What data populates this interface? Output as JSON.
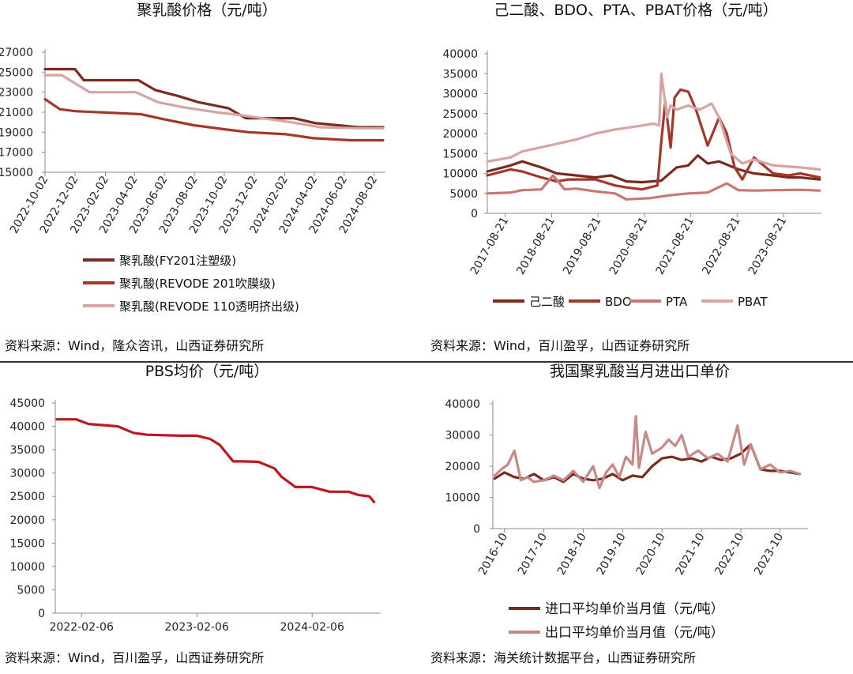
{
  "panels": [
    {
      "title": "聚乳酸价格（元/吨）",
      "source": "资料来源：Wind，隆众咨讯，山西证券研究所",
      "chart_data": {
        "type": "line",
        "title": "聚乳酸价格（元/吨）",
        "y_ticks": [
          "15000",
          "17000",
          "19000",
          "21000",
          "23000",
          "25000",
          "27000"
        ],
        "ylim": [
          15000,
          27000
        ],
        "x_ticks": [
          "2022-10-02",
          "2022-12-02",
          "2023-02-02",
          "2023-04-02",
          "2023-06-02",
          "2023-08-02",
          "2023-10-02",
          "2023-12-02",
          "2024-02-02",
          "2024-04-02",
          "2024-06-02",
          "2024-08-02"
        ],
        "legend": "bottom",
        "series": [
          {
            "name": "聚乳酸(FY201注塑级)",
            "color": "#7b2a20",
            "x": [
              "2022-10-02",
              "2022-12-02",
              "2022-12-20",
              "2023-04-10",
              "2023-05-15",
              "2023-07-01",
              "2023-08-10",
              "2023-10-10",
              "2023-11-15",
              "2024-02-20",
              "2024-04-05",
              "2024-07-01",
              "2024-08-20"
            ],
            "y": [
              25300,
              25300,
              24200,
              24200,
              23200,
              22600,
              22000,
              21400,
              20400,
              20400,
              19900,
              19500,
              19500
            ]
          },
          {
            "name": "聚乳酸(REVODE 201吹膜级)",
            "color": "#a3372a",
            "x": [
              "2022-10-02",
              "2022-11-01",
              "2022-12-02",
              "2023-04-15",
              "2023-06-01",
              "2023-08-01",
              "2023-10-01",
              "2023-11-20",
              "2024-02-05",
              "2024-04-01",
              "2024-06-15",
              "2024-08-20"
            ],
            "y": [
              22300,
              21300,
              21100,
              20800,
              20300,
              19700,
              19300,
              19000,
              18800,
              18400,
              18200,
              18200
            ]
          },
          {
            "name": "聚乳酸(REVODE 110透明挤出级)",
            "color": "#d6a4a2",
            "x": [
              "2022-10-02",
              "2022-11-05",
              "2023-01-01",
              "2023-04-05",
              "2023-05-20",
              "2023-07-10",
              "2023-09-15",
              "2023-11-05",
              "2024-02-15",
              "2024-04-15",
              "2024-07-01",
              "2024-08-20"
            ],
            "y": [
              24700,
              24700,
              23000,
              23000,
              22000,
              21500,
              21000,
              20700,
              20000,
              19500,
              19400,
              19400
            ]
          }
        ]
      }
    },
    {
      "title": "己二酸、BDO、PTA、PBAT价格（元/吨）",
      "source": "资料来源：Wind，百川盈孚，山西证券研究所",
      "chart_data": {
        "type": "line",
        "title": "己二酸、BDO、PTA、PBAT价格（元/吨）",
        "y_ticks": [
          "0",
          "5000",
          "10000",
          "15000",
          "20000",
          "25000",
          "30000",
          "35000",
          "40000"
        ],
        "ylim": [
          0,
          40000
        ],
        "x_ticks": [
          "2017-08-21",
          "2018-08-21",
          "2019-08-21",
          "2020-08-21",
          "2021-08-21",
          "2022-08-21",
          "2023-08-21"
        ],
        "legend": "bottom",
        "series": [
          {
            "name": "己二酸",
            "color": "#7b2a20",
            "x": [
              "2017-04-01",
              "2017-10-01",
              "2018-01-01",
              "2018-06-01",
              "2018-10-01",
              "2019-03-01",
              "2019-08-01",
              "2019-12-01",
              "2020-04-01",
              "2020-08-01",
              "2021-01-01",
              "2021-05-01",
              "2021-08-01",
              "2021-10-15",
              "2022-01-01",
              "2022-04-01",
              "2022-09-01",
              "2023-01-01",
              "2023-06-01",
              "2023-10-01",
              "2024-01-01",
              "2024-06-01"
            ],
            "y": [
              10500,
              12000,
              13000,
              11500,
              10000,
              9500,
              9000,
              9500,
              8000,
              7800,
              8200,
              11500,
              12000,
              14500,
              12500,
              13000,
              11000,
              10000,
              9500,
              9000,
              9000,
              8500
            ]
          },
          {
            "name": "BDO",
            "color": "#a3372a",
            "x": [
              "2017-04-01",
              "2017-10-01",
              "2018-01-01",
              "2018-06-01",
              "2018-10-01",
              "2019-01-01",
              "2019-08-01",
              "2020-01-01",
              "2020-04-01",
              "2020-08-01",
              "2020-12-01",
              "2021-01-01",
              "2021-02-01",
              "2021-03-15",
              "2021-04-15",
              "2021-06-01",
              "2021-08-01",
              "2021-10-01",
              "2022-01-01",
              "2022-04-01",
              "2022-06-01",
              "2022-08-01",
              "2022-10-01",
              "2023-01-01",
              "2023-06-01",
              "2023-10-01",
              "2024-01-01",
              "2024-06-01"
            ],
            "y": [
              9500,
              11000,
              10500,
              9000,
              8000,
              8500,
              8500,
              7000,
              6500,
              6000,
              7000,
              18000,
              28000,
              16500,
              29000,
              31000,
              30500,
              26000,
              17000,
              24000,
              20000,
              11500,
              8500,
              14000,
              10000,
              9500,
              10000,
              9000
            ]
          },
          {
            "name": "PTA",
            "color": "#c77872",
            "x": [
              "2017-04-01",
              "2017-10-01",
              "2018-01-01",
              "2018-06-01",
              "2018-09-01",
              "2018-12-01",
              "2019-03-01",
              "2019-08-01",
              "2020-01-01",
              "2020-04-01",
              "2020-10-01",
              "2021-03-01",
              "2021-08-01",
              "2022-01-01",
              "2022-06-01",
              "2022-09-01",
              "2023-01-01",
              "2023-06-01",
              "2024-01-01",
              "2024-06-01"
            ],
            "y": [
              5000,
              5200,
              5800,
              6000,
              9500,
              6000,
              6200,
              5500,
              5000,
              3500,
              3800,
              4500,
              5000,
              5200,
              7500,
              5800,
              5700,
              5800,
              5900,
              5700
            ]
          },
          {
            "name": "PBAT",
            "color": "#d6a4a2",
            "x": [
              "2017-04-01",
              "2017-10-01",
              "2018-01-01",
              "2018-08-01",
              "2019-03-01",
              "2019-08-01",
              "2020-01-01",
              "2020-08-01",
              "2020-11-01",
              "2020-12-15",
              "2021-01-01",
              "2021-02-15",
              "2021-03-15",
              "2021-05-01",
              "2021-08-01",
              "2021-11-01",
              "2022-02-01",
              "2022-04-01",
              "2022-07-01",
              "2022-10-01",
              "2023-01-01",
              "2023-06-01",
              "2024-01-01",
              "2024-06-01"
            ],
            "y": [
              13000,
              14000,
              15500,
              17000,
              18500,
              20000,
              21000,
              22000,
              22500,
              22000,
              35000,
              24000,
              27000,
              26000,
              27000,
              26000,
              27500,
              24000,
              15000,
              12500,
              13500,
              12000,
              11500,
              11000
            ]
          }
        ]
      }
    },
    {
      "title": "PBS均价（元/吨）",
      "source": "资料来源：Wind，百川盈孚，山西证券研究所",
      "chart_data": {
        "type": "line",
        "title": "PBS均价（元/吨）",
        "y_ticks": [
          "0",
          "5000",
          "10000",
          "15000",
          "20000",
          "25000",
          "30000",
          "35000",
          "40000",
          "45000"
        ],
        "ylim": [
          0,
          45000
        ],
        "x_ticks": [
          "2022-02-06",
          "2023-02-06",
          "2024-02-06"
        ],
        "series": [
          {
            "name": "PBS均价",
            "color": "#c0161f",
            "x": [
              "2021-11-20",
              "2022-01-20",
              "2022-03-01",
              "2022-06-01",
              "2022-07-20",
              "2022-09-01",
              "2022-12-15",
              "2023-02-06",
              "2023-03-20",
              "2023-04-20",
              "2023-06-01",
              "2023-07-01",
              "2023-08-20",
              "2023-10-10",
              "2023-11-01",
              "2023-12-15",
              "2024-02-06",
              "2024-04-01",
              "2024-06-01",
              "2024-07-01",
              "2024-08-05",
              "2024-08-20"
            ],
            "y": [
              41500,
              41500,
              40500,
              40000,
              38600,
              38200,
              38000,
              38000,
              37300,
              36000,
              32500,
              32500,
              32400,
              31000,
              29200,
              27000,
              27000,
              26000,
              26000,
              25300,
              25000,
              23800
            ]
          }
        ]
      }
    },
    {
      "title": "我国聚乳酸当月进出口单价",
      "source": "资料来源：海关统计数据平台，山西证券研究所",
      "chart_data": {
        "type": "line",
        "title": "我国聚乳酸当月进出口单价",
        "y_ticks": [
          "0",
          "10000",
          "20000",
          "30000",
          "40000"
        ],
        "ylim": [
          0,
          40000
        ],
        "x_ticks": [
          "2016-10",
          "2017-10",
          "2018-10",
          "2019-10",
          "2020-10",
          "2021-10",
          "2022-10",
          "2023-10"
        ],
        "legend": "bottom",
        "series": [
          {
            "name": "进口平均单价当月值（元/吨）",
            "color": "#7b2a20",
            "x": [
              "2016-07",
              "2016-10",
              "2017-01",
              "2017-04",
              "2017-07",
              "2017-10",
              "2018-01",
              "2018-04",
              "2018-07",
              "2018-10",
              "2019-01",
              "2019-04",
              "2019-07",
              "2019-10",
              "2020-01",
              "2020-04",
              "2020-07",
              "2020-10",
              "2021-01",
              "2021-04",
              "2021-07",
              "2021-10",
              "2022-01",
              "2022-04",
              "2022-07",
              "2022-10",
              "2023-01",
              "2023-04",
              "2023-07",
              "2023-10",
              "2024-01",
              "2024-04"
            ],
            "y": [
              16000,
              18000,
              16500,
              16000,
              17500,
              15500,
              16500,
              15000,
              17500,
              16000,
              15500,
              16000,
              17500,
              15500,
              17000,
              16500,
              20000,
              22500,
              23000,
              22000,
              22500,
              21500,
              23000,
              22000,
              22500,
              24000,
              27000,
              19000,
              18500,
              18500,
              18000,
              17500
            ]
          },
          {
            "name": "出口平均单价当月值（元/吨）",
            "color": "#c78985",
            "x": [
              "2016-07",
              "2016-09",
              "2016-11",
              "2017-01",
              "2017-03",
              "2017-05",
              "2017-07",
              "2017-10",
              "2018-01",
              "2018-04",
              "2018-07",
              "2018-10",
              "2019-01",
              "2019-03",
              "2019-05",
              "2019-07",
              "2019-09",
              "2019-11",
              "2020-01",
              "2020-02",
              "2020-03",
              "2020-05",
              "2020-07",
              "2020-10",
              "2020-12",
              "2021-02",
              "2021-04",
              "2021-06",
              "2021-09",
              "2021-12",
              "2022-03",
              "2022-06",
              "2022-09",
              "2022-11",
              "2023-01",
              "2023-04",
              "2023-07",
              "2023-10",
              "2024-01",
              "2024-04"
            ],
            "y": [
              17000,
              19000,
              20500,
              25000,
              15500,
              16500,
              15000,
              15500,
              17000,
              15500,
              18500,
              15000,
              20000,
              13000,
              18000,
              20500,
              16500,
              23000,
              20500,
              36000,
              19500,
              31000,
              24000,
              26000,
              28500,
              26500,
              30000,
              23000,
              25000,
              22500,
              24000,
              21500,
              33000,
              20500,
              27000,
              19000,
              20500,
              18000,
              18500,
              17500
            ]
          }
        ]
      }
    }
  ]
}
